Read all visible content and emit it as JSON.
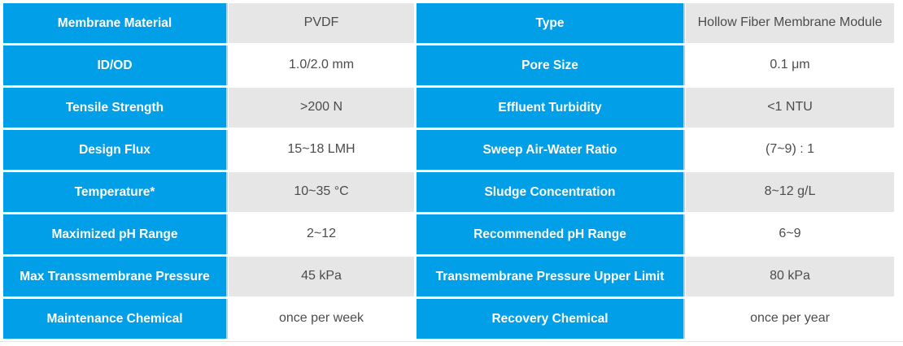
{
  "colors": {
    "accent_blue": "#019fe8",
    "seam_light_blue": "#9bd9f6",
    "value_row_gray": "#e6e6e6",
    "value_row_white": "#ffffff",
    "value_text": "#4c4c4c",
    "label_text": "#ffffff"
  },
  "table": {
    "rows": [
      {
        "cells": [
          {
            "text": "Membrane Material"
          },
          {
            "text": "PVDF"
          },
          {
            "text": "Type"
          },
          {
            "text": "Hollow Fiber Membrane Module"
          }
        ]
      },
      {
        "cells": [
          {
            "text": "ID/OD"
          },
          {
            "text": "1.0/2.0 mm"
          },
          {
            "text": "Pore Size"
          },
          {
            "text": "0.1 μm"
          }
        ]
      },
      {
        "cells": [
          {
            "text": "Tensile Strength"
          },
          {
            "text": ">200 N"
          },
          {
            "text": "Effluent Turbidity"
          },
          {
            "text": "<1 NTU"
          }
        ]
      },
      {
        "cells": [
          {
            "text": "Design Flux"
          },
          {
            "text": "15~18 LMH"
          },
          {
            "text": "Sweep Air-Water Ratio"
          },
          {
            "text": "(7~9) : 1"
          }
        ]
      },
      {
        "cells": [
          {
            "text": "Temperature*"
          },
          {
            "text": "10~35 °C"
          },
          {
            "text": "Sludge Concentration"
          },
          {
            "text": "8~12 g/L"
          }
        ]
      },
      {
        "cells": [
          {
            "text": "Maximized pH Range"
          },
          {
            "text": "2~12"
          },
          {
            "text": "Recommended pH Range"
          },
          {
            "text": "6~9"
          }
        ]
      },
      {
        "cells": [
          {
            "text": "Max Transsmembrane Pressure"
          },
          {
            "text": "45 kPa"
          },
          {
            "text": "Transmembrane Pressure Upper Limit"
          },
          {
            "text": "80 kPa"
          }
        ]
      },
      {
        "cells": [
          {
            "text": "Maintenance Chemical"
          },
          {
            "text": "once per week"
          },
          {
            "text": "Recovery Chemical"
          },
          {
            "text": "once per year"
          }
        ]
      }
    ]
  }
}
